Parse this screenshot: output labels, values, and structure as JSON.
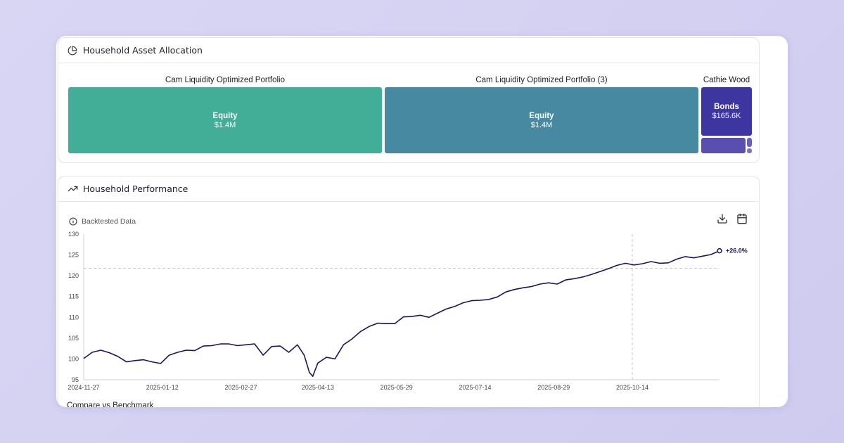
{
  "allocation": {
    "title": "Household Asset Allocation",
    "icon": "pie-chart-icon",
    "portfolios": [
      {
        "name": "Cam Liquidity Optimized Portfolio",
        "tiles": [
          {
            "label": "Equity",
            "value": "$1.4M",
            "color": "#43ae98"
          }
        ]
      },
      {
        "name": "Cam Liquidity Optimized Portfolio (3)",
        "tiles": [
          {
            "label": "Equity",
            "value": "$1.4M",
            "color": "#4889a2"
          }
        ]
      },
      {
        "name": "Cathie Wood",
        "tiles": [
          {
            "label": "Bonds",
            "value": "$165.6K",
            "color": "#3d35a0"
          },
          {
            "label": "",
            "value": "",
            "color": "#5a4fb0"
          },
          {
            "label": "",
            "value": "",
            "color": "#6a5fbc"
          },
          {
            "label": "",
            "value": "",
            "color": "#7d72c6"
          }
        ]
      }
    ]
  },
  "performance": {
    "title": "Household Performance",
    "icon": "trending-up-icon",
    "backtested_label": "Backtested Data",
    "compare_label": "Compare vs Benchmark",
    "line_color": "#1a1466"
  },
  "chart_data": {
    "type": "line",
    "x_ticks": [
      "2024-11-27",
      "2025-01-12",
      "2025-02-27",
      "2025-04-13",
      "2025-05-29",
      "2025-07-14",
      "2025-08-29",
      "2025-10-14"
    ],
    "y_ticks": [
      95,
      100,
      105,
      110,
      115,
      120,
      125,
      130
    ],
    "ylim": [
      95,
      130
    ],
    "reference_y": 121.8,
    "reference_x": "2025-10-14",
    "end_label": "+26.0%",
    "series": [
      {
        "x": [
          "2024-11-27",
          "2024-12-02",
          "2024-12-07",
          "2024-12-12",
          "2024-12-17",
          "2024-12-22",
          "2024-12-27",
          "2025-01-01",
          "2025-01-06",
          "2025-01-11",
          "2025-01-16",
          "2025-01-21",
          "2025-01-26",
          "2025-01-31",
          "2025-02-05",
          "2025-02-10",
          "2025-02-15",
          "2025-02-20",
          "2025-02-25",
          "2025-03-02",
          "2025-03-07",
          "2025-03-12",
          "2025-03-17",
          "2025-03-22",
          "2025-03-27",
          "2025-04-01",
          "2025-04-05",
          "2025-04-08",
          "2025-04-10",
          "2025-04-13",
          "2025-04-18",
          "2025-04-23",
          "2025-04-28",
          "2025-05-03",
          "2025-05-08",
          "2025-05-13",
          "2025-05-18",
          "2025-05-23",
          "2025-05-28",
          "2025-06-02",
          "2025-06-07",
          "2025-06-12",
          "2025-06-17",
          "2025-06-22",
          "2025-06-27",
          "2025-07-02",
          "2025-07-07",
          "2025-07-12",
          "2025-07-17",
          "2025-07-22",
          "2025-07-27",
          "2025-08-01",
          "2025-08-06",
          "2025-08-11",
          "2025-08-16",
          "2025-08-21",
          "2025-08-26",
          "2025-08-31",
          "2025-09-05",
          "2025-09-10",
          "2025-09-15",
          "2025-09-20",
          "2025-09-25",
          "2025-09-30",
          "2025-10-05",
          "2025-10-10",
          "2025-10-15",
          "2025-10-20",
          "2025-10-25",
          "2025-10-30",
          "2025-11-04",
          "2025-11-09",
          "2025-11-14",
          "2025-11-19",
          "2025-11-24",
          "2025-11-29",
          "2025-12-04"
        ],
        "y": [
          100.1,
          101.6,
          102.1,
          101.5,
          100.6,
          99.3,
          99.6,
          99.8,
          99.3,
          98.9,
          100.9,
          101.6,
          102.1,
          102.0,
          103.1,
          103.2,
          103.6,
          103.6,
          103.2,
          103.4,
          103.6,
          100.9,
          103.0,
          103.1,
          101.6,
          103.4,
          100.9,
          96.8,
          95.8,
          99.0,
          100.4,
          100.0,
          103.4,
          104.8,
          106.6,
          107.8,
          108.6,
          108.5,
          108.5,
          110.1,
          110.2,
          110.5,
          110.0,
          111.0,
          112.0,
          112.6,
          113.5,
          114.0,
          114.1,
          114.3,
          114.9,
          116.1,
          116.7,
          117.1,
          117.4,
          118.0,
          118.3,
          118.0,
          119.0,
          119.3,
          119.7,
          120.3,
          121.0,
          121.7,
          122.5,
          123.0,
          122.6,
          122.9,
          123.4,
          123.0,
          123.1,
          124.0,
          124.6,
          124.3,
          124.7,
          125.1,
          126.0
        ]
      }
    ]
  }
}
